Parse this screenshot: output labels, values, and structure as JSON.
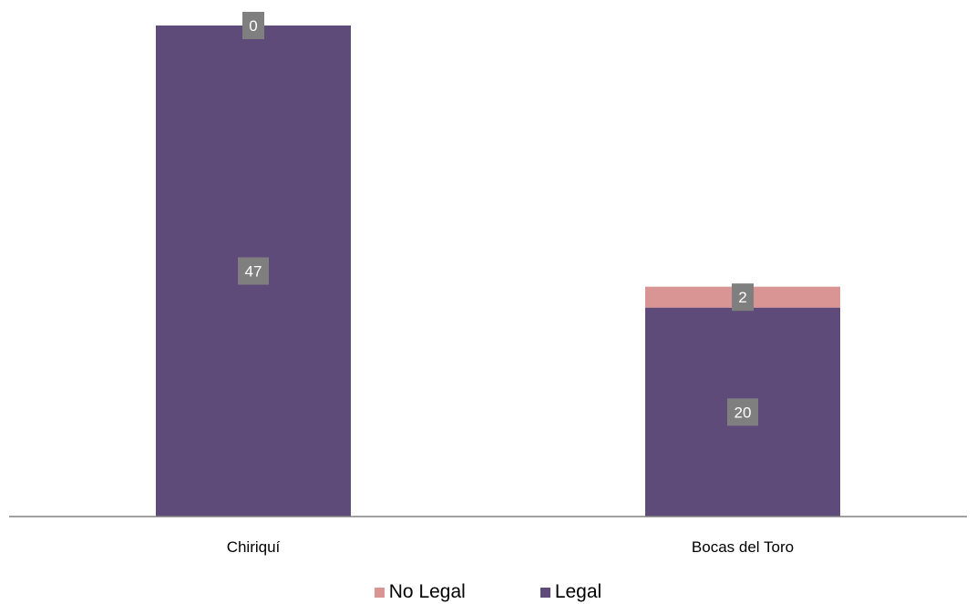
{
  "chart_data": {
    "type": "bar",
    "stacked": true,
    "categories": [
      "Chiriquí",
      "Bocas del Toro"
    ],
    "series": [
      {
        "name": "Legal",
        "values": [
          47,
          20
        ],
        "color": "#5f4b7a"
      },
      {
        "name": "No Legal",
        "values": [
          0,
          2
        ],
        "color": "#d99594"
      }
    ],
    "ylim": [
      0,
      47
    ],
    "grid": false,
    "legend_position": "bottom",
    "axis_color": "#808080",
    "label_box_color": "#7f7f7f"
  },
  "legend": {
    "items": [
      {
        "label": "No Legal",
        "color": "#d99594"
      },
      {
        "label": "Legal",
        "color": "#5f4b7a"
      }
    ]
  }
}
